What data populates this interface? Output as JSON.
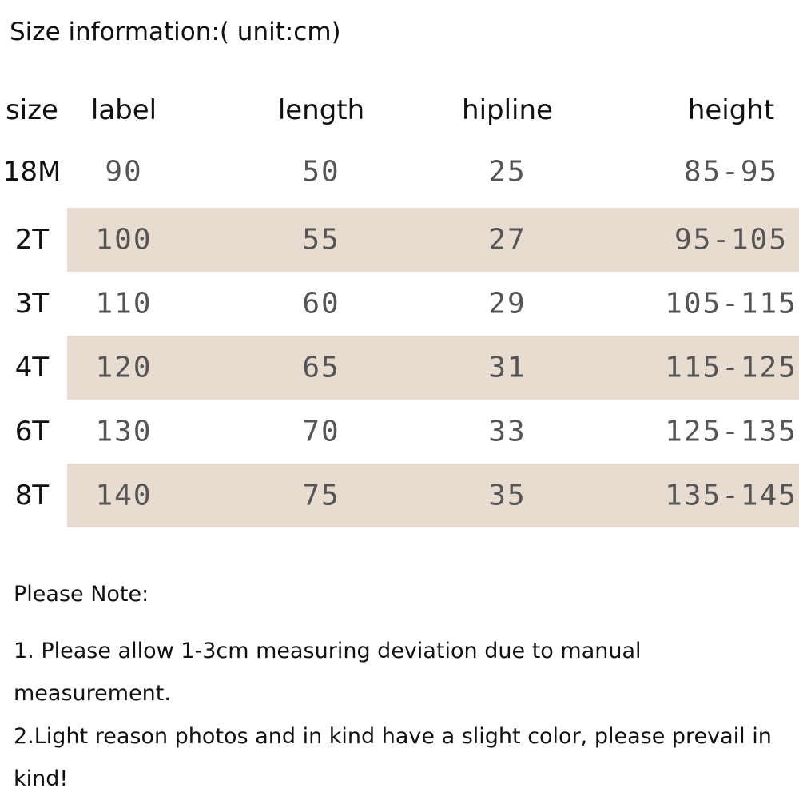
{
  "header": {
    "title": "Size information:( unit:cm)"
  },
  "table": {
    "columns": [
      "size",
      "label",
      "length",
      "hipline",
      "height"
    ],
    "rows": [
      [
        "18M",
        "90",
        "50",
        "25",
        "85-95"
      ],
      [
        "2T",
        "100",
        "55",
        "27",
        "95-105"
      ],
      [
        "3T",
        "110",
        "60",
        "29",
        "105-115"
      ],
      [
        "4T",
        "120",
        "65",
        "31",
        "115-125"
      ],
      [
        "6T",
        "130",
        "70",
        "33",
        "125-135"
      ],
      [
        "8T",
        "140",
        "75",
        "35",
        "135-145"
      ]
    ]
  },
  "notes": {
    "heading": "Please Note:",
    "items": [
      "1. Please allow 1-3cm measuring deviation due to manual measurement.",
      "2.Light reason photos and in kind have a slight color, please prevail in kind!"
    ]
  }
}
